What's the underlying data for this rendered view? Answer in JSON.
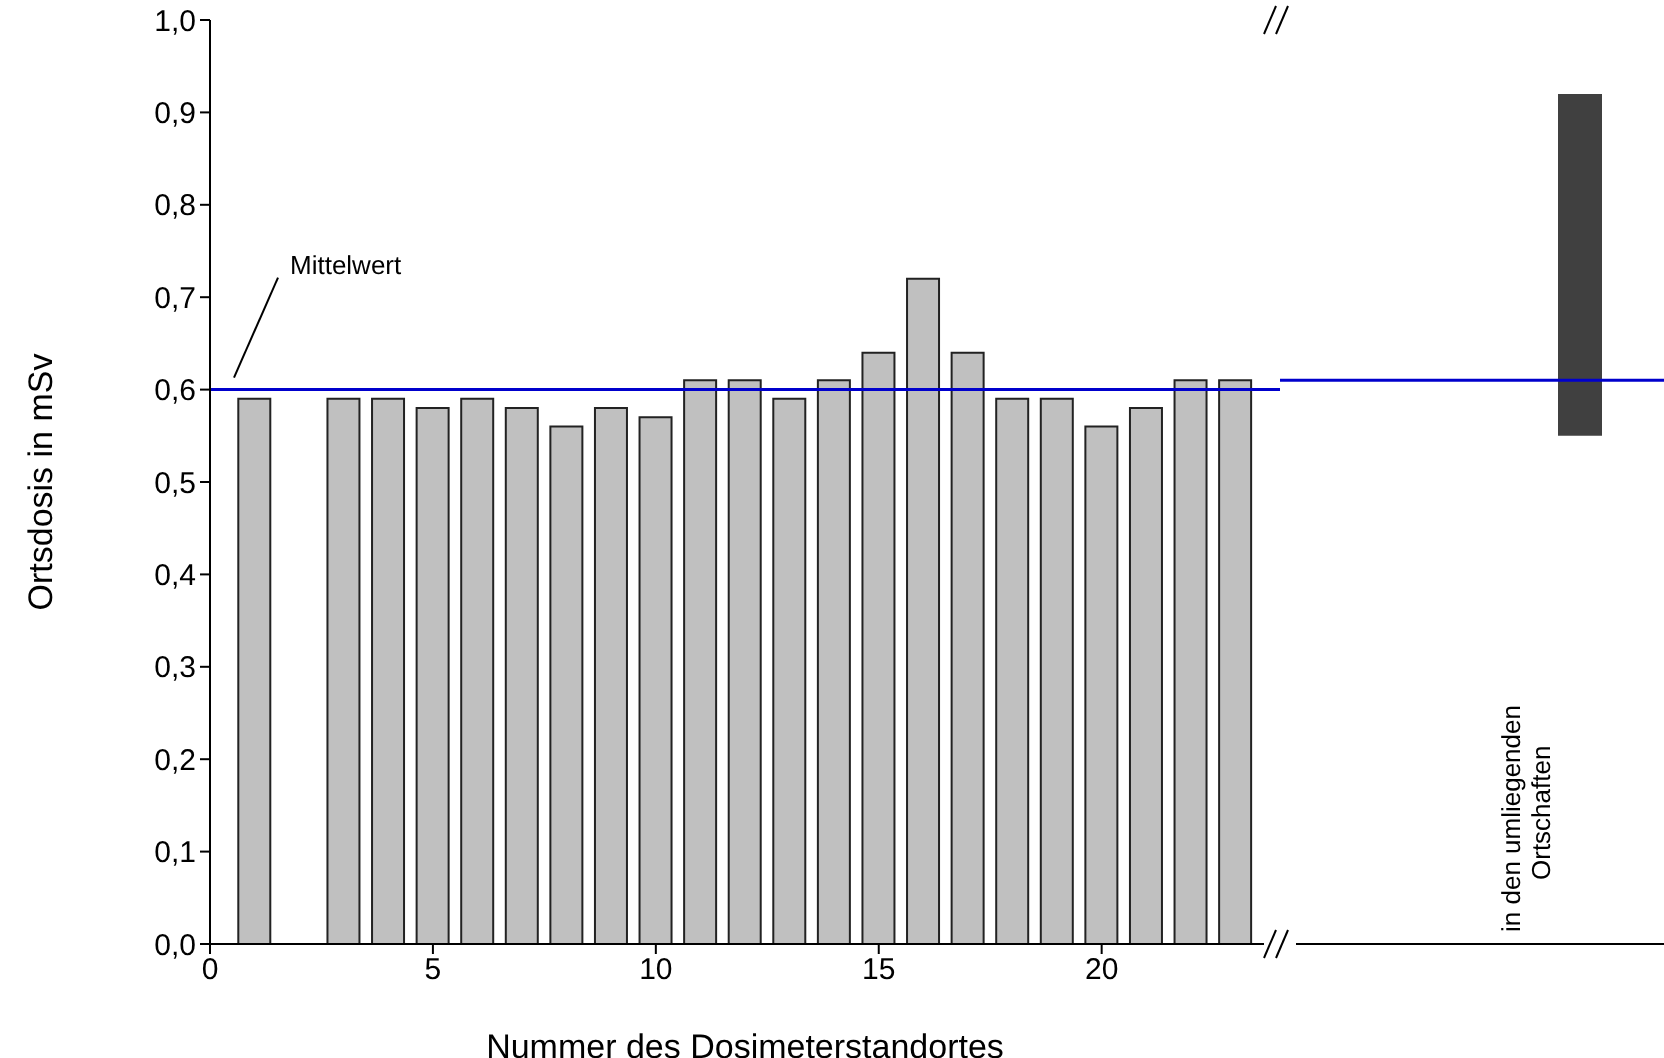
{
  "chart_data": [
    {
      "type": "bar",
      "xlabel": "Nummer des Dosimeterstandortes",
      "ylabel": "Ortsdosis in mSv",
      "x": [
        1,
        3,
        4,
        5,
        6,
        7,
        8,
        9,
        10,
        11,
        12,
        13,
        14,
        15,
        16,
        17,
        18,
        19,
        20,
        21,
        22,
        23
      ],
      "values": [
        0.59,
        0.59,
        0.59,
        0.58,
        0.59,
        0.58,
        0.56,
        0.58,
        0.57,
        0.61,
        0.61,
        0.59,
        0.61,
        0.64,
        0.72,
        0.64,
        0.59,
        0.59,
        0.56,
        0.58,
        0.61,
        0.61
      ],
      "color": "#c0c0c0",
      "xlim": [
        0,
        24
      ],
      "xticks": [
        0,
        5,
        10,
        15,
        20
      ],
      "ylim": [
        0,
        1
      ],
      "yticks": [
        {
          "value": 0,
          "label": "0,0"
        },
        {
          "value": 0.1,
          "label": "0,1"
        },
        {
          "value": 0.2,
          "label": "0,2"
        },
        {
          "value": 0.3,
          "label": "0,3"
        },
        {
          "value": 0.4,
          "label": "0,4"
        },
        {
          "value": 0.5,
          "label": "0,5"
        },
        {
          "value": 0.6,
          "label": "0,6"
        },
        {
          "value": 0.7,
          "label": "0,7"
        },
        {
          "value": 0.8,
          "label": "0,8"
        },
        {
          "value": 0.9,
          "label": "0,9"
        },
        {
          "value": 1,
          "label": "1,0"
        }
      ],
      "ref_lines": [
        {
          "axis": "y",
          "value": 0.6,
          "label": "Mittelwert",
          "color": "#0000cc"
        }
      ],
      "grid": false,
      "legend": false
    },
    {
      "type": "bar",
      "categories": [
        "in den umliegenden Ortschaften"
      ],
      "base": [
        0.55
      ],
      "values": [
        0.37
      ],
      "color": "#404040",
      "ylim": [
        0,
        1
      ],
      "ref_lines": [
        {
          "axis": "y",
          "value": 0.61,
          "color": "#0000cc"
        }
      ]
    }
  ]
}
